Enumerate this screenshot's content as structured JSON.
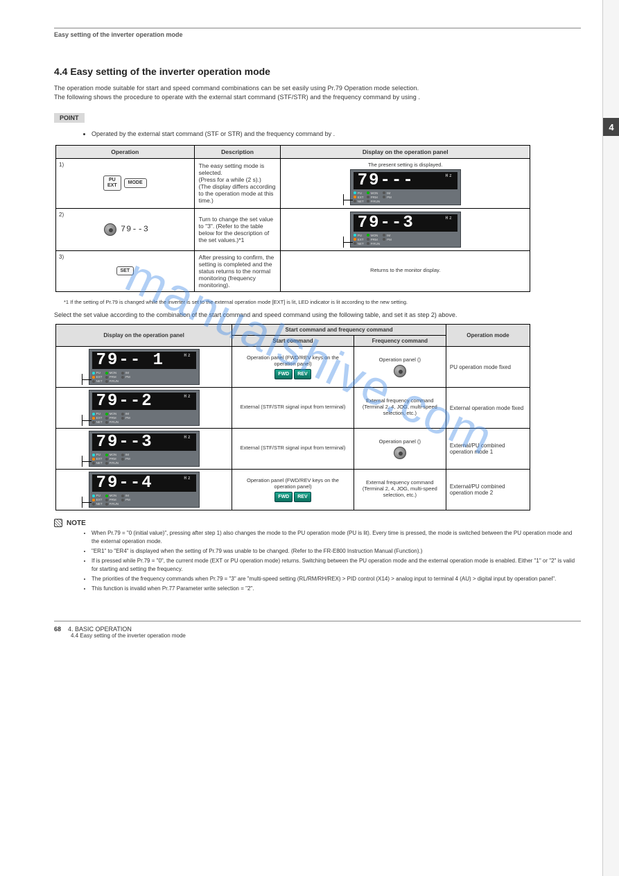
{
  "header": "Easy setting of the inverter operation mode",
  "side_tab": "4",
  "title": "4.4 Easy setting of the inverter operation mode",
  "intro": "The operation mode suitable for start and speed command combinations can be set easily using Pr.79 Operation mode selection.\nThe following shows the procedure to operate with the external start command (STF/STR) and the frequency command by using .",
  "point_label": "POINT",
  "point_text": "Operated by the external start command (STF or STR) and the frequency command by .",
  "t1": {
    "headers": [
      "Operation",
      "Description",
      "Display on the operation panel"
    ],
    "rows": [
      {
        "step": "1)",
        "keys": [
          "PU\nEXT",
          "MODE"
        ],
        "desc_lines": [
          "The easy setting mode is selected.",
          "(Press  for a while (2 s).)",
          "(The display differs according to the operation mode at this time.)"
        ],
        "disp_note": "The present setting is displayed.",
        "lcd_value": "79---",
        "leds_mode": "easy"
      },
      {
        "step": "2)",
        "dial": true,
        "dial_value": "79--3",
        "desc_lines": [
          "Turn  to change the set value to \"3\". (Refer to the table below for the description of the set values.)*1"
        ],
        "lcd_value": "79--3",
        "leds_mode": "ext"
      },
      {
        "step": "3)",
        "keys": [
          "SET"
        ],
        "desc_lines": [
          "After pressing  to confirm, the setting is completed and the status returns to the normal monitoring (frequency monitoring)."
        ],
        "disp_note": "Returns to the monitor display."
      }
    ]
  },
  "t1_star": "*1 If the setting of Pr.79 is changed while the inverter is set to the external operation mode [EXT] is lit, LED indicator is lit according to the new setting.",
  "mid_p": "Select the set value according to the combination of the start command and speed command using the following table, and set it as step 2) above.",
  "t2": {
    "head_row1": [
      "Display on the operation panel",
      "Start command and frequency command",
      "Operation mode"
    ],
    "head_row2": [
      "Start command",
      "Frequency command"
    ],
    "rows": [
      {
        "lcd": "79-- 1",
        "start_lbl": "Operation panel (FWD/REV keys on the operation panel)",
        "show_fwdrev": true,
        "freq_lbl": "Operation panel ()",
        "show_dial": true,
        "mode": "PU operation mode fixed"
      },
      {
        "lcd": "79--2",
        "start_lbl": "External (STF/STR signal input from terminal)",
        "freq_lbl": "External frequency command (Terminal 2, 4, JOG, multi-speed selection, etc.)",
        "mode": "External operation mode fixed"
      },
      {
        "lcd": "79--3",
        "start_lbl": "External (STF/STR signal input from terminal)",
        "freq_lbl": "Operation panel ()",
        "show_dial": true,
        "mode": "External/PU combined operation mode 1"
      },
      {
        "lcd": "79--4",
        "start_lbl": "Operation panel (FWD/REV keys on the operation panel)",
        "show_fwdrev": true,
        "freq_lbl": "External frequency command (Terminal 2, 4, JOG, multi-speed selection, etc.)",
        "mode": "External/PU combined operation mode 2"
      }
    ]
  },
  "notes_title": "NOTE",
  "notes": [
    "When Pr.79 = \"0 (initial value)\", pressing  after step 1) also changes the mode to the PU operation mode (PU is lit). Every time  is pressed, the mode is switched between the PU operation mode and the external operation mode.",
    "\"ER1\" to \"ER4\" is displayed when the setting of Pr.79 was unable to be changed. (Refer to the FR-E800 Instruction Manual (Function).)",
    "If  is pressed while Pr.79 = \"0\", the current mode (EXT or PU operation mode) returns. Switching between the PU operation mode and the external operation mode is enabled. Either \"1\" or \"2\" is valid for starting and setting the frequency.",
    "The priorities of the frequency commands when Pr.79 = \"3\" are \"multi-speed setting (RL/RM/RH/REX) > PID control (X14) > analog input to terminal 4 (AU) > digital input by operation panel\".",
    "This function is invalid when Pr.77 Parameter write selection = \"2\"."
  ],
  "footer": {
    "page": "68",
    "chapter": "4. BASIC OPERATION",
    "sub": "4.4 Easy setting of the inverter operation mode"
  },
  "watermark": "manualshive.com",
  "keys": {
    "fwd": "FWD",
    "rev": "REV"
  },
  "lcd_labels": {
    "PU": "PU",
    "EXT": "EXT",
    "NET": "NET",
    "MON": "MON",
    "PRM": "PRM",
    "PRUN": "P.RUN",
    "IM": "IM",
    "PM": "PM",
    "HZ": "Hz"
  }
}
